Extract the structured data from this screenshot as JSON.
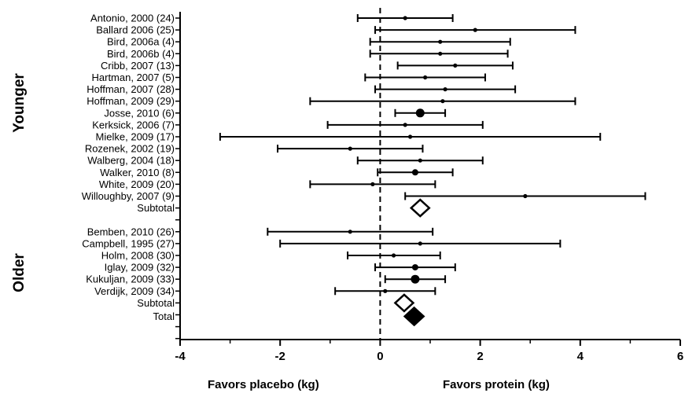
{
  "chart_data": {
    "type": "forest",
    "x_range": [
      -4,
      6
    ],
    "x_ticks": [
      -4,
      -2,
      0,
      2,
      4,
      6
    ],
    "reference_line": 0,
    "x_captions": {
      "left": "Favors placebo (kg)",
      "right": "Favors protein (kg)"
    },
    "groups": [
      {
        "label": "Younger",
        "studies": [
          {
            "label": "Antonio, 2000 (24)",
            "est": 0.5,
            "lo": -0.45,
            "hi": 1.45,
            "marker": "small"
          },
          {
            "label": "Ballard 2006 (25)",
            "est": 1.9,
            "lo": -0.1,
            "hi": 3.9,
            "marker": "small"
          },
          {
            "label": "Bird, 2006a (4)",
            "est": 1.2,
            "lo": -0.2,
            "hi": 2.6,
            "marker": "small"
          },
          {
            "label": "Bird, 2006b (4)",
            "est": 1.2,
            "lo": -0.2,
            "hi": 2.55,
            "marker": "small"
          },
          {
            "label": "Cribb, 2007 (13)",
            "est": 1.5,
            "lo": 0.35,
            "hi": 2.65,
            "marker": "small"
          },
          {
            "label": "Hartman, 2007 (5)",
            "est": 0.9,
            "lo": -0.3,
            "hi": 2.1,
            "marker": "small"
          },
          {
            "label": "Hoffman, 2007 (28)",
            "est": 1.3,
            "lo": -0.1,
            "hi": 2.7,
            "marker": "small"
          },
          {
            "label": "Hoffman, 2009 (29)",
            "est": 1.25,
            "lo": -1.4,
            "hi": 3.9,
            "marker": "small"
          },
          {
            "label": "Josse, 2010 (6)",
            "est": 0.8,
            "lo": 0.3,
            "hi": 1.3,
            "marker": "large"
          },
          {
            "label": "Kerksick, 2006 (7)",
            "est": 0.5,
            "lo": -1.05,
            "hi": 2.05,
            "marker": "small"
          },
          {
            "label": "Mielke, 2009 (17)",
            "est": 0.6,
            "lo": -3.2,
            "hi": 4.4,
            "marker": "small"
          },
          {
            "label": "Rozenek, 2002 (19)",
            "est": -0.6,
            "lo": -2.05,
            "hi": 0.85,
            "marker": "small"
          },
          {
            "label": "Walberg, 2004 (18)",
            "est": 0.8,
            "lo": -0.45,
            "hi": 2.05,
            "marker": "small"
          },
          {
            "label": "Walker, 2010 (8)",
            "est": 0.7,
            "lo": -0.05,
            "hi": 1.45,
            "marker": "medium"
          },
          {
            "label": "White, 2009 (20)",
            "est": -0.15,
            "lo": -1.4,
            "hi": 1.1,
            "marker": "small"
          },
          {
            "label": "Willoughby, 2007 (9)",
            "est": 2.9,
            "lo": 0.5,
            "hi": 5.3,
            "marker": "small"
          }
        ],
        "subtotal": {
          "label": "Subtotal",
          "est": 0.8,
          "style": "hollow-diamond"
        }
      },
      {
        "label": "Older",
        "studies": [
          {
            "label": "Bemben, 2010 (26)",
            "est": -0.6,
            "lo": -2.25,
            "hi": 1.05,
            "marker": "small"
          },
          {
            "label": "Campbell, 1995 (27)",
            "est": 0.8,
            "lo": -2.0,
            "hi": 3.6,
            "marker": "small"
          },
          {
            "label": "Holm, 2008 (30)",
            "est": 0.27,
            "lo": -0.65,
            "hi": 1.2,
            "marker": "small"
          },
          {
            "label": "Iglay, 2009 (32)",
            "est": 0.7,
            "lo": -0.1,
            "hi": 1.5,
            "marker": "medium"
          },
          {
            "label": "Kukuljan, 2009 (33)",
            "est": 0.7,
            "lo": 0.1,
            "hi": 1.3,
            "marker": "large"
          },
          {
            "label": "Verdijk, 2009 (34)",
            "est": 0.1,
            "lo": -0.9,
            "hi": 1.1,
            "marker": "small"
          }
        ],
        "subtotal": {
          "label": "Subtotal",
          "est": 0.48,
          "style": "hollow-diamond"
        }
      }
    ],
    "total": {
      "label": "Total",
      "est": 0.68,
      "style": "filled-diamond"
    }
  }
}
